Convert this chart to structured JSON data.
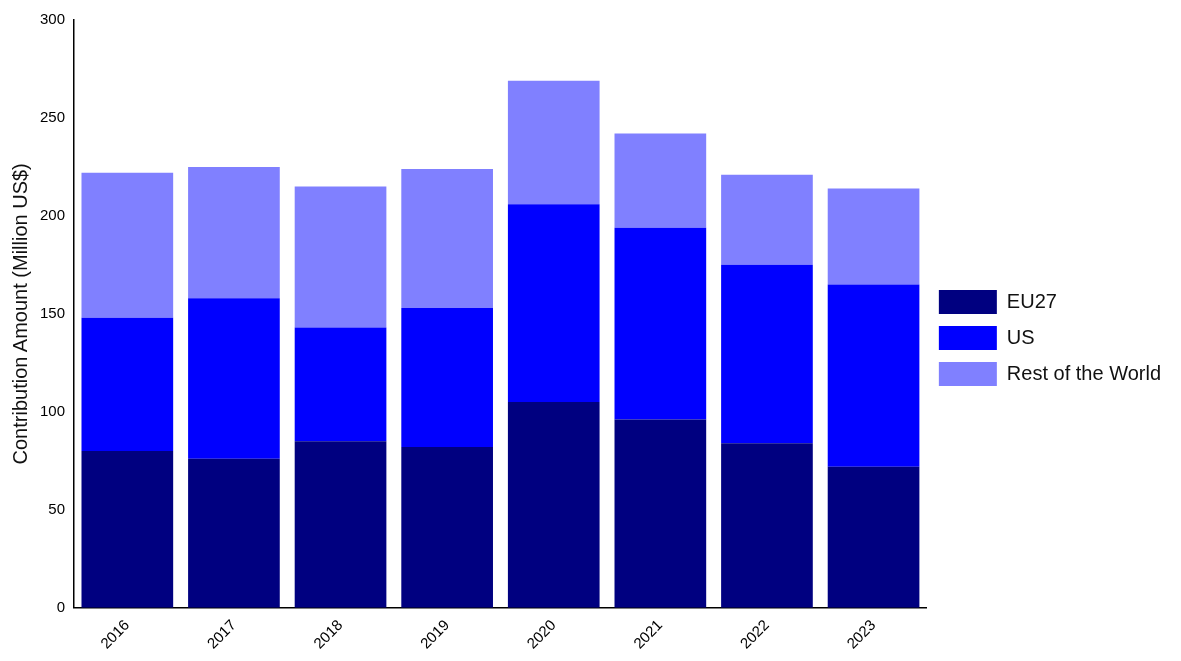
{
  "chart_data": {
    "type": "bar",
    "stacked": true,
    "categories": [
      "2016",
      "2017",
      "2018",
      "2019",
      "2020",
      "2021",
      "2022",
      "2023"
    ],
    "series": [
      {
        "name": "EU27",
        "color": "#000080",
        "values": [
          80,
          76,
          85,
          82,
          105,
          96,
          84,
          72
        ]
      },
      {
        "name": "US",
        "color": "#0000ff",
        "values": [
          68,
          82,
          58,
          71,
          101,
          98,
          91,
          93
        ]
      },
      {
        "name": "Rest of the World",
        "color": "#8080ff",
        "values": [
          74,
          67,
          72,
          71,
          63,
          48,
          46,
          49
        ]
      }
    ],
    "ylabel": "Contribution Amount (Million US$)",
    "ylim": [
      0,
      300
    ],
    "yticks": [
      0,
      50,
      100,
      150,
      200,
      250,
      300
    ],
    "grid": false,
    "legend": "right"
  }
}
